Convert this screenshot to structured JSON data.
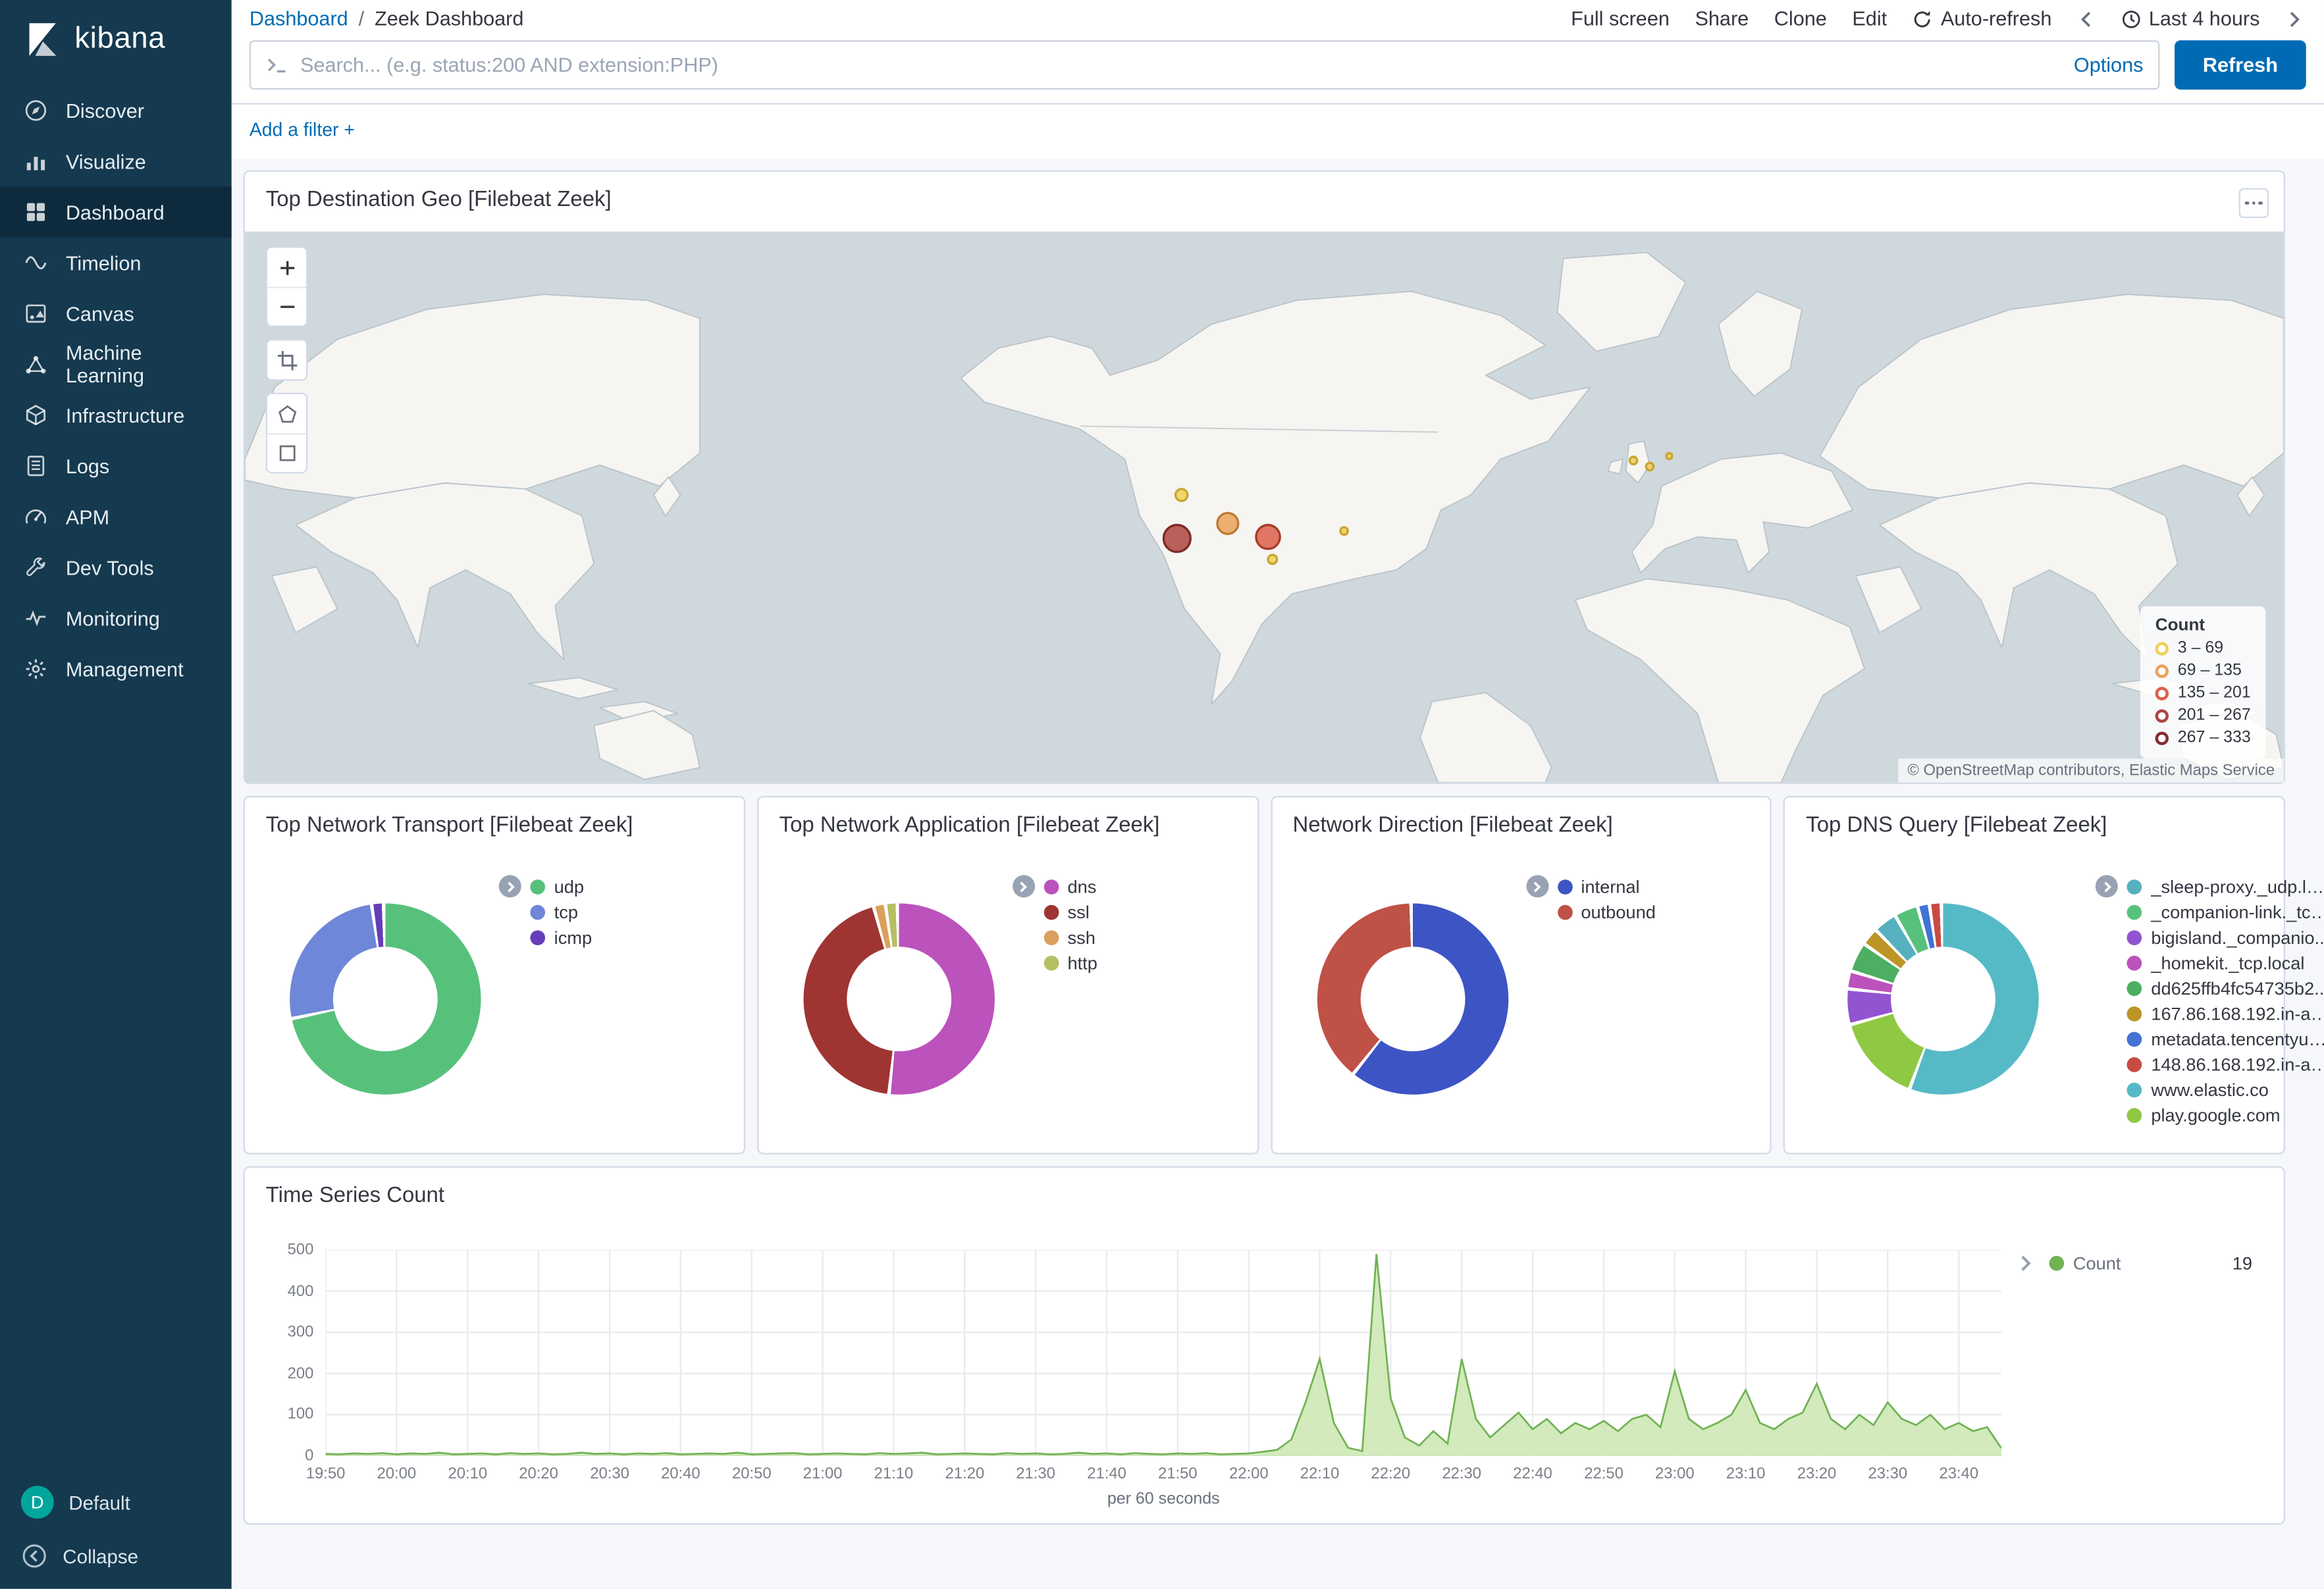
{
  "brand": {
    "name": "kibana"
  },
  "sidebar": {
    "items": [
      {
        "label": "Discover",
        "icon": "discover-icon",
        "selected": false
      },
      {
        "label": "Visualize",
        "icon": "visualize-icon",
        "selected": false
      },
      {
        "label": "Dashboard",
        "icon": "dashboard-icon",
        "selected": true
      },
      {
        "label": "Timelion",
        "icon": "timelion-icon",
        "selected": false
      },
      {
        "label": "Canvas",
        "icon": "canvas-icon",
        "selected": false
      },
      {
        "label": "Machine Learning",
        "icon": "machine-learning-icon",
        "selected": false
      },
      {
        "label": "Infrastructure",
        "icon": "infrastructure-icon",
        "selected": false
      },
      {
        "label": "Logs",
        "icon": "logs-icon",
        "selected": false
      },
      {
        "label": "APM",
        "icon": "apm-icon",
        "selected": false
      },
      {
        "label": "Dev Tools",
        "icon": "dev-tools-icon",
        "selected": false
      },
      {
        "label": "Monitoring",
        "icon": "monitoring-icon",
        "selected": false
      },
      {
        "label": "Management",
        "icon": "management-icon",
        "selected": false
      }
    ],
    "footer": {
      "space_label": "Default",
      "avatar_letter": "D",
      "avatar_color": "#00A69B",
      "collapse_label": "Collapse"
    }
  },
  "header": {
    "breadcrumb": {
      "root": "Dashboard",
      "separator": "/",
      "current": "Zeek Dashboard"
    },
    "actions": [
      "Full screen",
      "Share",
      "Clone",
      "Edit"
    ],
    "auto_refresh_label": "Auto-refresh",
    "time_range_label": "Last 4 hours"
  },
  "query_bar": {
    "placeholder": "Search... (e.g. status:200 AND extension:PHP)",
    "options_label": "Options",
    "refresh_label": "Refresh"
  },
  "filter_bar": {
    "add_filter_label": "Add a filter",
    "plus_symbol": "+"
  },
  "panels": {
    "map": {
      "title": "Top Destination Geo [Filebeat Zeek]",
      "attribution": "© OpenStreetMap contributors, Elastic Maps Service",
      "legend": {
        "title": "Count",
        "buckets": [
          {
            "range": "3 – 69",
            "color": "#F2CF57",
            "stroke": "#C8A62E"
          },
          {
            "range": "69 – 135",
            "color": "#EBA25A",
            "stroke": "#BF7A33"
          },
          {
            "range": "135 – 201",
            "color": "#DD5F4B",
            "stroke": "#A93C2C"
          },
          {
            "range": "201 – 267",
            "color": "#AE4540",
            "stroke": "#7E2A28"
          },
          {
            "range": "267 – 333",
            "color": "#842C33",
            "stroke": "#5B1A20"
          }
        ]
      },
      "markers": [
        {
          "x": 625,
          "y": 205,
          "r": 9,
          "bucket": 3
        },
        {
          "x": 659,
          "y": 195,
          "r": 7,
          "bucket": 1
        },
        {
          "x": 686,
          "y": 204,
          "r": 8,
          "bucket": 2
        },
        {
          "x": 628,
          "y": 176,
          "r": 4,
          "bucket": 0
        },
        {
          "x": 689,
          "y": 219,
          "r": 3,
          "bucket": 0
        },
        {
          "x": 737,
          "y": 200,
          "r": 2.5,
          "bucket": 0
        },
        {
          "x": 931,
          "y": 153,
          "r": 2.5,
          "bucket": 0
        },
        {
          "x": 942,
          "y": 157,
          "r": 2.5,
          "bucket": 0
        },
        {
          "x": 955,
          "y": 150,
          "r": 2,
          "bucket": 0
        }
      ]
    }
  },
  "donuts": [
    {
      "title": "Top Network Transport [Filebeat Zeek]",
      "type": "donut",
      "slices": [
        {
          "label": "udp",
          "color": "#57C17B",
          "value": 72
        },
        {
          "label": "tcp",
          "color": "#6F87D8",
          "value": 26
        },
        {
          "label": "icmp",
          "color": "#663DB8",
          "value": 2
        }
      ]
    },
    {
      "title": "Top Network Application [Filebeat Zeek]",
      "type": "donut",
      "slices": [
        {
          "label": "dns",
          "color": "#BC52BC",
          "value": 52
        },
        {
          "label": "ssl",
          "color": "#9E3533",
          "value": 44
        },
        {
          "label": "ssh",
          "color": "#DAA05D",
          "value": 2
        },
        {
          "label": "http",
          "color": "#B6BF62",
          "value": 2
        }
      ]
    },
    {
      "title": "Network Direction [Filebeat Zeek]",
      "type": "donut",
      "slices": [
        {
          "label": "internal",
          "color": "#3D54C5",
          "value": 61
        },
        {
          "label": "outbound",
          "color": "#BF5146",
          "value": 39
        }
      ]
    },
    {
      "title": "Top DNS Query [Filebeat Zeek]",
      "type": "donut",
      "slices": [
        {
          "label": "_sleep-proxy._udp.local",
          "color": "#56B0BE",
          "value": 4
        },
        {
          "label": "_companion-link._tcp...",
          "color": "#57C17B",
          "value": 4
        },
        {
          "label": "bigisland._companio...",
          "color": "#9254D0",
          "value": 6
        },
        {
          "label": "_homekit._tcp.local",
          "color": "#BC52BC",
          "value": 3
        },
        {
          "label": "dd625ffb4fc54735b2...",
          "color": "#4DAF62",
          "value": 5
        },
        {
          "label": "167.86.168.192.in-ad...",
          "color": "#BD9426",
          "value": 3
        },
        {
          "label": "metadata.tencentyun...",
          "color": "#4272D6",
          "value": 2
        },
        {
          "label": "148.86.168.192.in-ad...",
          "color": "#C74B44",
          "value": 2
        },
        {
          "label": "www.elastic.co",
          "color": "#56B9C6",
          "value": 56
        },
        {
          "label": "play.google.com",
          "color": "#8FC842",
          "value": 15
        }
      ],
      "draw_order": [
        8,
        9,
        2,
        3,
        4,
        5,
        0,
        1,
        6,
        7
      ]
    }
  ],
  "time_series": {
    "title": "Time Series Count",
    "type": "area",
    "line_color": "#71B254",
    "fill_color": "#CDE8B5",
    "legend": {
      "label": "Count",
      "value": "19",
      "dot_color": "#71B254"
    },
    "x_axis_caption": "per 60 seconds",
    "y_ticks": [
      0,
      100,
      200,
      300,
      400,
      500
    ],
    "y_max": 500,
    "x_ticks": [
      "19:50",
      "20:00",
      "20:10",
      "20:20",
      "20:30",
      "20:40",
      "20:50",
      "21:00",
      "21:10",
      "21:20",
      "21:30",
      "21:40",
      "21:50",
      "22:00",
      "22:10",
      "22:20",
      "22:30",
      "22:40",
      "22:50",
      "23:00",
      "23:10",
      "23:20",
      "23:30",
      "23:40"
    ],
    "x_tick_interval_minutes": 10,
    "step_minutes": 2,
    "total_minutes": 236,
    "values": [
      5,
      4,
      6,
      5,
      7,
      4,
      6,
      5,
      8,
      4,
      5,
      6,
      4,
      7,
      5,
      6,
      4,
      5,
      8,
      5,
      6,
      4,
      6,
      5,
      7,
      4,
      5,
      6,
      5,
      8,
      4,
      5,
      6,
      7,
      4,
      5,
      6,
      5,
      4,
      7,
      5,
      6,
      8,
      4,
      5,
      6,
      5,
      4,
      7,
      5,
      6,
      4,
      5,
      8,
      5,
      6,
      4,
      7,
      5,
      4,
      6,
      5,
      7,
      4,
      5,
      6,
      10,
      15,
      40,
      130,
      235,
      80,
      20,
      12,
      490,
      140,
      45,
      25,
      60,
      30,
      235,
      90,
      45,
      75,
      105,
      65,
      90,
      55,
      80,
      65,
      85,
      60,
      90,
      100,
      70,
      205,
      90,
      65,
      80,
      100,
      160,
      80,
      65,
      90,
      105,
      175,
      90,
      65,
      100,
      75,
      130,
      90,
      75,
      100,
      65,
      80,
      60,
      70,
      19
    ]
  }
}
